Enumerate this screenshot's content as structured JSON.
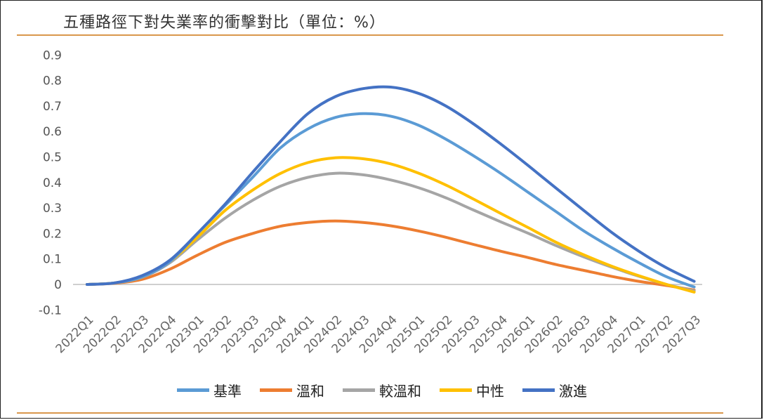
{
  "chart_data": {
    "type": "line",
    "title": "五種路徑下對失業率的衝擊對比（單位：%）",
    "xlabel": "",
    "ylabel": "",
    "ylim": [
      -0.1,
      0.9
    ],
    "yticks": [
      -0.1,
      0,
      0.1,
      0.2,
      0.3,
      0.4,
      0.5,
      0.6,
      0.7,
      0.8,
      0.9
    ],
    "ytick_labels": [
      "-0.1",
      "0",
      "0.1",
      "0.2",
      "0.3",
      "0.4",
      "0.5",
      "0.6",
      "0.7",
      "0.8",
      "0.9"
    ],
    "categories": [
      "2022Q1",
      "2022Q2",
      "2022Q3",
      "2022Q4",
      "2023Q1",
      "2023Q2",
      "2023Q3",
      "2023Q4",
      "2024Q1",
      "2024Q2",
      "2024Q3",
      "2024Q4",
      "2025Q1",
      "2025Q2",
      "2025Q3",
      "2025Q4",
      "2026Q1",
      "2026Q2",
      "2026Q3",
      "2026Q4",
      "2027Q1",
      "2027Q2",
      "2027Q3"
    ],
    "legend_position": "bottom",
    "grid": false,
    "series": [
      {
        "name": "基準",
        "color": "#5b9bd5",
        "values": [
          0,
          0.006,
          0.03,
          0.09,
          0.2,
          0.31,
          0.42,
          0.535,
          0.61,
          0.655,
          0.67,
          0.66,
          0.625,
          0.57,
          0.505,
          0.435,
          0.36,
          0.285,
          0.21,
          0.145,
          0.085,
          0.03,
          -0.01
        ]
      },
      {
        "name": "溫和",
        "color": "#ed7d31",
        "values": [
          0,
          0.005,
          0.02,
          0.06,
          0.115,
          0.165,
          0.2,
          0.228,
          0.243,
          0.249,
          0.243,
          0.23,
          0.21,
          0.185,
          0.157,
          0.13,
          0.105,
          0.078,
          0.055,
          0.032,
          0.012,
          -0.004,
          -0.022
        ]
      },
      {
        "name": "較溫和",
        "color": "#a5a5a5",
        "values": [
          0,
          0.006,
          0.028,
          0.085,
          0.175,
          0.26,
          0.33,
          0.385,
          0.42,
          0.436,
          0.43,
          0.41,
          0.38,
          0.34,
          0.292,
          0.245,
          0.2,
          0.152,
          0.108,
          0.068,
          0.032,
          0.0,
          -0.025
        ]
      },
      {
        "name": "中性",
        "color": "#ffc000",
        "values": [
          0,
          0.006,
          0.03,
          0.09,
          0.185,
          0.29,
          0.37,
          0.435,
          0.478,
          0.497,
          0.493,
          0.473,
          0.437,
          0.39,
          0.335,
          0.278,
          0.222,
          0.165,
          0.116,
          0.072,
          0.034,
          0.0,
          -0.03
        ]
      },
      {
        "name": "激進",
        "color": "#4472c4",
        "values": [
          0,
          0.006,
          0.035,
          0.095,
          0.2,
          0.315,
          0.44,
          0.56,
          0.67,
          0.737,
          0.768,
          0.774,
          0.75,
          0.7,
          0.63,
          0.55,
          0.465,
          0.377,
          0.29,
          0.205,
          0.13,
          0.065,
          0.012
        ]
      }
    ]
  }
}
